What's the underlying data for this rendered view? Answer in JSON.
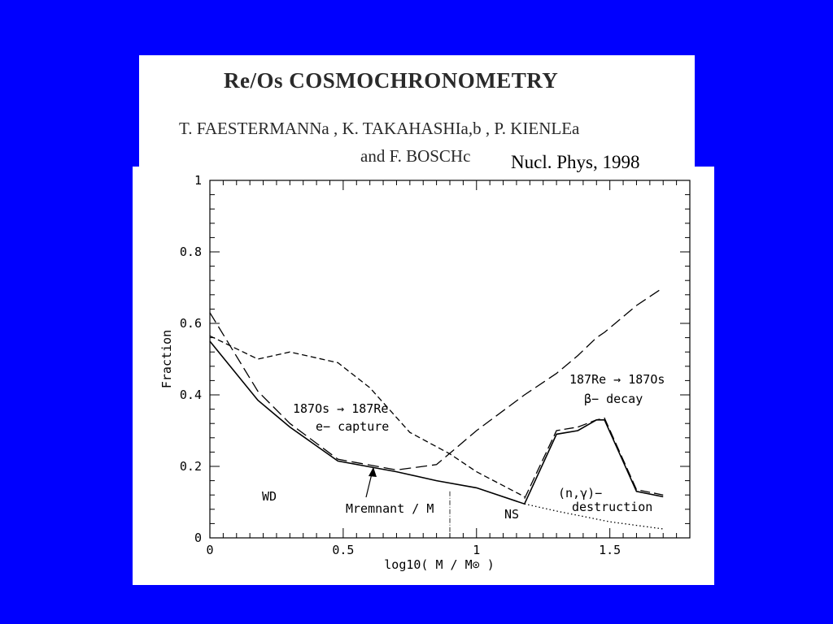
{
  "header": {
    "title": "Re/Os COSMOCHRONOMETRY",
    "authors_line1": "T. FAESTERMANNa , K. TAKAHASHIa,b , P. KIENLEa",
    "authors_line2": "and F. BOSCHc",
    "citation": "Nucl. Phys, 1998"
  },
  "chart_data": {
    "type": "line",
    "xlabel": "log10( M / M⊙ )",
    "ylabel": "Fraction",
    "xlim": [
      0,
      1.8
    ],
    "ylim": [
      0,
      1
    ],
    "x_ticks": [
      "0",
      "0.5",
      "1",
      "1.5"
    ],
    "y_ticks": [
      "0",
      "0.2",
      "0.4",
      "0.6",
      "0.8",
      "1"
    ],
    "grid": false,
    "annotations": {
      "os_to_re": "187Os → 187Re",
      "e_capture": "e− capture",
      "re_to_os": "187Re → 187Os",
      "beta_decay": "β− decay",
      "wd": "WD",
      "ns": "NS",
      "n_gamma": "(n,γ)−",
      "destruction": "destruction",
      "m_remnant": "Mremnant / M"
    },
    "series": [
      {
        "style": "solid",
        "x": [
          0,
          0.18,
          0.3,
          0.48,
          0.7,
          0.85,
          1.0,
          1.18,
          1.3,
          1.38,
          1.45,
          1.48,
          1.6,
          1.7
        ],
        "y": [
          0.55,
          0.385,
          0.31,
          0.215,
          0.185,
          0.16,
          0.14,
          0.095,
          0.29,
          0.3,
          0.33,
          0.33,
          0.13,
          0.115
        ]
      },
      {
        "style": "long-dash",
        "x": [
          0,
          0.18,
          0.3,
          0.48,
          0.7,
          0.85,
          1.0,
          1.18,
          1.3,
          1.38,
          1.45,
          1.48,
          1.6,
          1.7
        ],
        "y": [
          0.63,
          0.41,
          0.32,
          0.22,
          0.19,
          0.205,
          0.3,
          0.4,
          0.46,
          0.51,
          0.56,
          0.575,
          0.65,
          0.7
        ]
      },
      {
        "style": "short-dash",
        "x": [
          0,
          0.18,
          0.3,
          0.48,
          0.6,
          0.75,
          0.9,
          1.0,
          1.18
        ],
        "y": [
          0.565,
          0.5,
          0.52,
          0.49,
          0.42,
          0.295,
          0.235,
          0.185,
          0.115
        ]
      },
      {
        "style": "long-dash-high",
        "x": [
          1.18,
          1.3,
          1.38,
          1.45,
          1.48,
          1.6,
          1.7
        ],
        "y": [
          0.11,
          0.3,
          0.31,
          0.33,
          0.335,
          0.135,
          0.12
        ]
      },
      {
        "style": "dotted",
        "x": [
          1.18,
          1.3,
          1.4,
          1.5,
          1.6,
          1.7
        ],
        "y": [
          0.095,
          0.075,
          0.06,
          0.045,
          0.035,
          0.025
        ]
      }
    ],
    "vertical_marker_x": 0.9
  }
}
